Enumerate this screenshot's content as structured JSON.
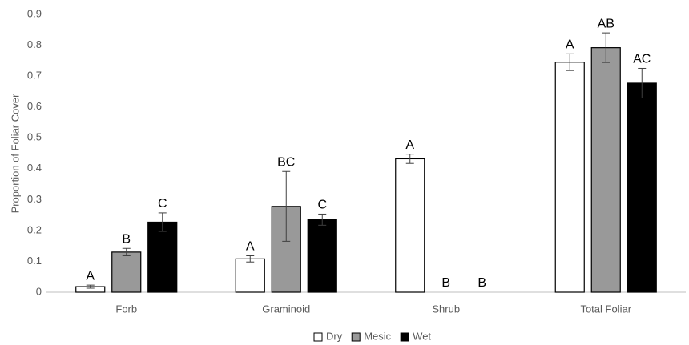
{
  "chart_data": {
    "type": "bar",
    "y_label": "Proportion of Foliar Cover",
    "categories": [
      "Forb",
      "Graminoid",
      "Shrub",
      "Total Foliar"
    ],
    "series": [
      {
        "name": "Dry",
        "color": "#ffffff",
        "values": [
          0.018,
          0.108,
          0.432,
          0.745
        ],
        "errors": [
          0.005,
          0.01,
          0.015,
          0.027
        ],
        "letters": [
          "A",
          "A",
          "A",
          "A"
        ]
      },
      {
        "name": "Mesic",
        "color": "#999999",
        "values": [
          0.13,
          0.278,
          0,
          0.792
        ],
        "errors": [
          0.012,
          0.113,
          null,
          0.048
        ],
        "letters": [
          "B",
          "BC",
          "B",
          "AB"
        ]
      },
      {
        "name": "Wet",
        "color": "#000000",
        "values": [
          0.227,
          0.235,
          0,
          0.677
        ],
        "errors": [
          0.03,
          0.018,
          null,
          0.048
        ],
        "letters": [
          "C",
          "C",
          "B",
          "AC"
        ]
      }
    ],
    "ylim": [
      0,
      0.9
    ],
    "yticks": [
      0,
      0.1,
      0.2,
      0.3,
      0.4,
      0.5,
      0.6,
      0.7,
      0.8,
      0.9
    ],
    "legend": "bottom"
  }
}
